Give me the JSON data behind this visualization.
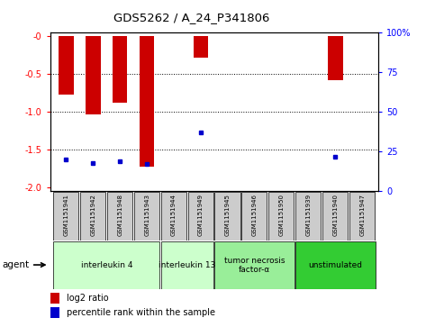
{
  "title": "GDS5262 / A_24_P341806",
  "samples": [
    "GSM1151941",
    "GSM1151942",
    "GSM1151948",
    "GSM1151943",
    "GSM1151944",
    "GSM1151949",
    "GSM1151945",
    "GSM1151946",
    "GSM1151950",
    "GSM1151939",
    "GSM1151940",
    "GSM1151947"
  ],
  "log2_ratios": [
    -0.77,
    -1.03,
    -0.88,
    -1.72,
    0.0,
    -0.28,
    0.0,
    0.0,
    0.0,
    0.0,
    -0.58,
    0.0
  ],
  "percentile_ranks": [
    20,
    18,
    19,
    17,
    0,
    37,
    0,
    0,
    0,
    0,
    22,
    0
  ],
  "groups": [
    {
      "label": "interleukin 4",
      "start": 0,
      "end": 3,
      "color": "#ccffcc"
    },
    {
      "label": "interleukin 13",
      "start": 4,
      "end": 5,
      "color": "#ccffcc"
    },
    {
      "label": "tumor necrosis\nfactor-α",
      "start": 6,
      "end": 8,
      "color": "#99ee99"
    },
    {
      "label": "unstimulated",
      "start": 9,
      "end": 11,
      "color": "#33cc33"
    }
  ],
  "ylim_left": [
    -2.05,
    0.05
  ],
  "ylim_right": [
    0,
    100
  ],
  "left_ticks": [
    0,
    -0.5,
    -1.0,
    -1.5,
    -2.0
  ],
  "right_ticks": [
    0,
    25,
    50,
    75,
    100
  ],
  "bar_color": "#cc0000",
  "percentile_color": "#0000cc",
  "background_color": "#ffffff",
  "bar_width": 0.55,
  "sample_bg": "#cccccc"
}
